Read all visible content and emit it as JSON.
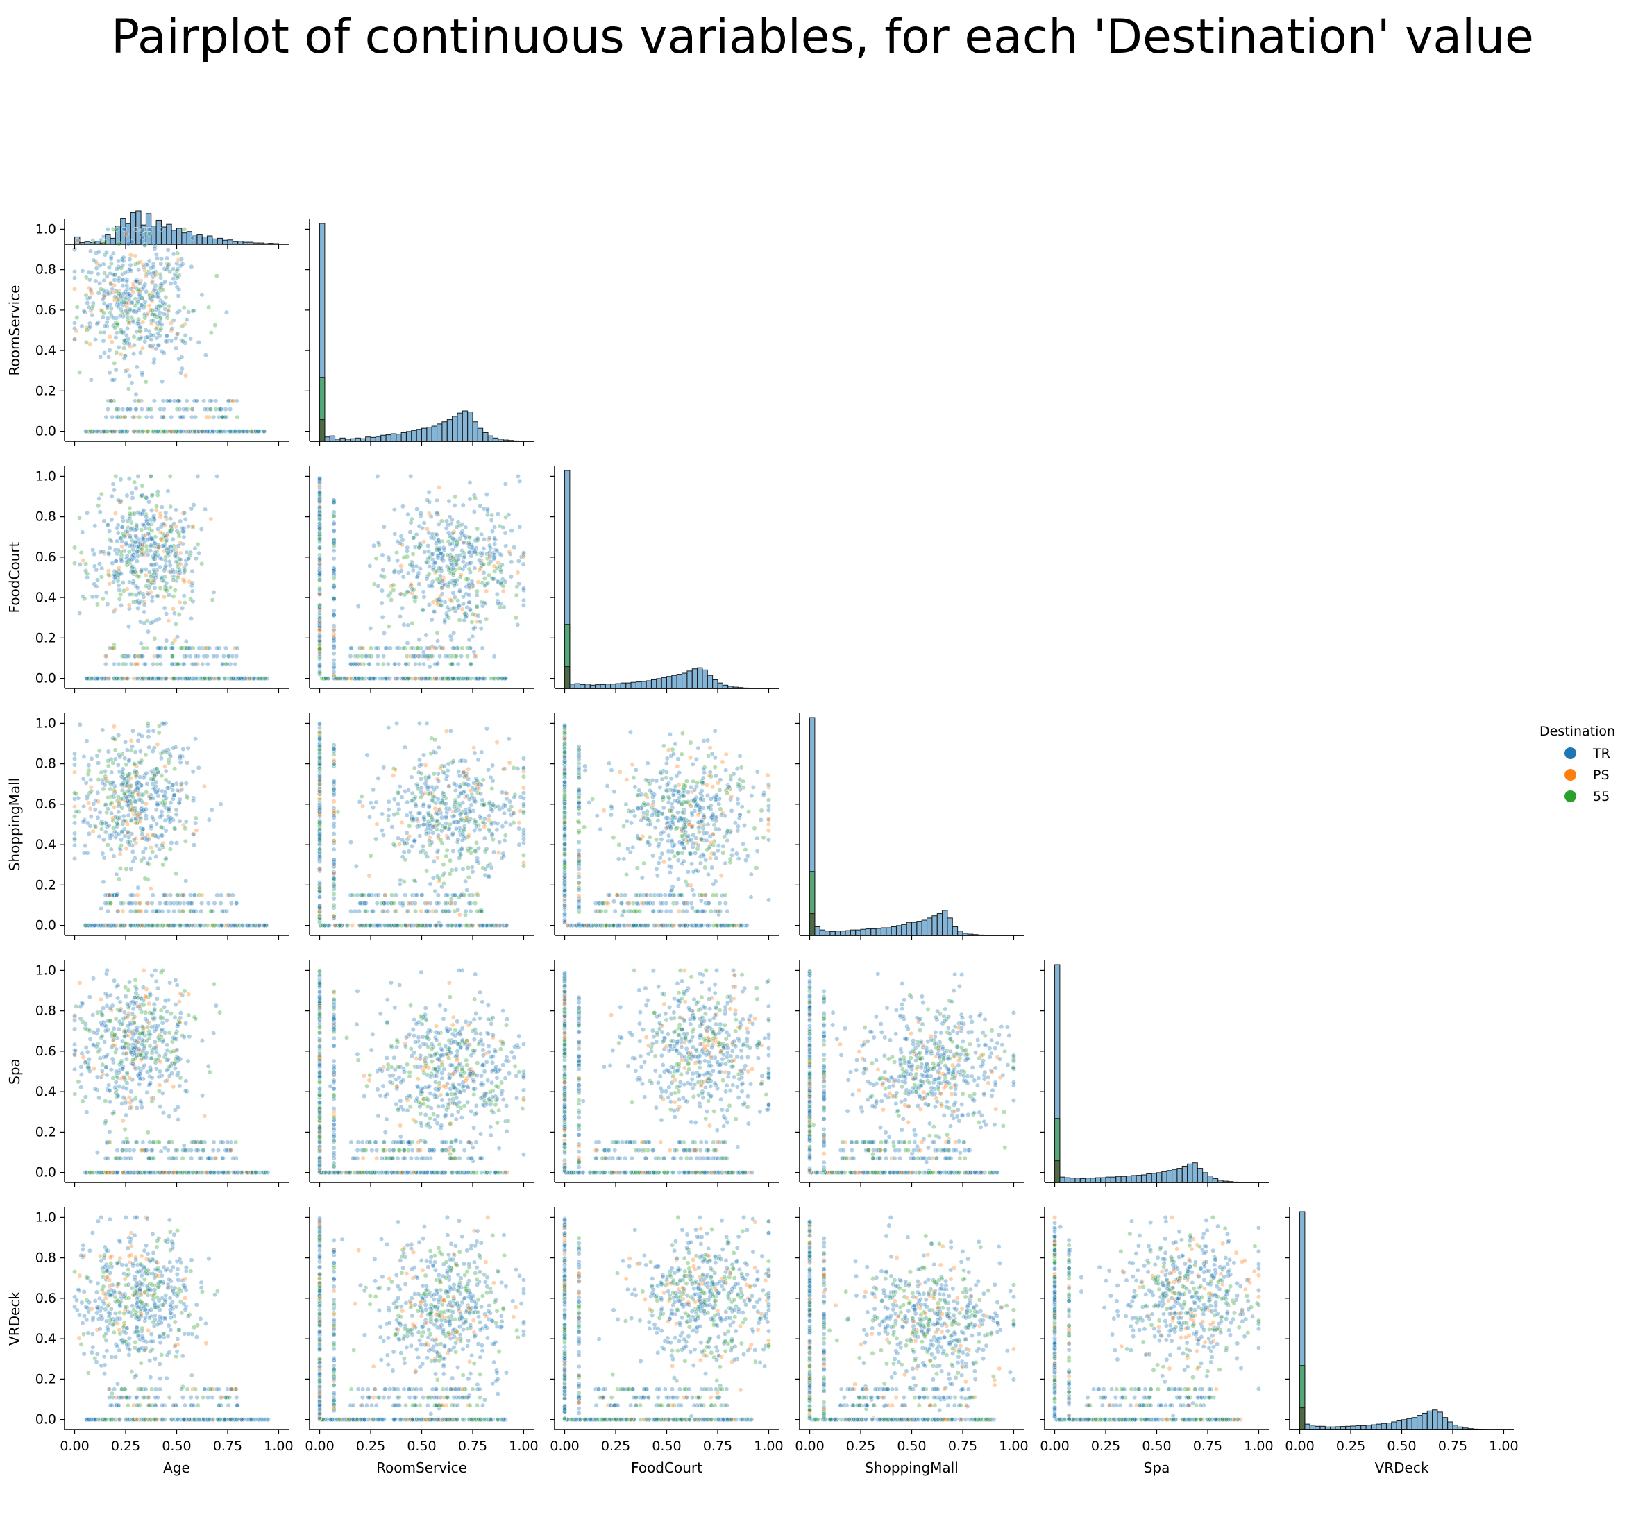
{
  "title": "Pairplot of continuous variables, for each 'Destination' value",
  "legend": {
    "title": "Destination",
    "entries": [
      {
        "label": "TR",
        "color": "#1f77b4"
      },
      {
        "label": "PS",
        "color": "#ff7f0e"
      },
      {
        "label": "55",
        "color": "#2ca02c"
      }
    ]
  },
  "chart_data": {
    "type": "scatter",
    "variant": "pairplot (corner, lower triangle) with histogram diagonal",
    "variables": [
      "Age",
      "RoomService",
      "FoodCourt",
      "ShoppingMall",
      "Spa",
      "VRDeck"
    ],
    "hue": "Destination",
    "hue_levels": [
      "TR",
      "PS",
      "55"
    ],
    "axis_range": [
      0,
      1
    ],
    "ticks": [
      0.0,
      0.25,
      0.5,
      0.75,
      1.0
    ],
    "x_tick_labels": [
      "0.00",
      "0.25",
      "0.50",
      "0.75",
      "1.00"
    ],
    "y_ticks": [
      0.0,
      0.2,
      0.4,
      0.6,
      0.8,
      1.0
    ],
    "y_tick_labels": [
      "0.0",
      "0.2",
      "0.4",
      "0.6",
      "0.8",
      "1.0"
    ],
    "grid": false,
    "legend_position": "right",
    "diagonal_histograms": {
      "bin_width": 0.025,
      "Age": [
        0.22,
        0.05,
        0.08,
        0.05,
        0.09,
        0.04,
        0.3,
        0.18,
        0.55,
        0.78,
        0.62,
        0.95,
        1.0,
        0.58,
        0.92,
        0.55,
        0.72,
        0.52,
        0.6,
        0.42,
        0.48,
        0.34,
        0.38,
        0.28,
        0.3,
        0.22,
        0.25,
        0.16,
        0.18,
        0.12,
        0.13,
        0.08,
        0.09,
        0.06,
        0.06,
        0.04,
        0.04,
        0.02,
        0.03,
        0.02
      ],
      "RoomService": [
        1.0,
        0.02,
        0.025,
        0.01,
        0.015,
        0.01,
        0.012,
        0.015,
        0.012,
        0.02,
        0.018,
        0.022,
        0.028,
        0.03,
        0.035,
        0.033,
        0.04,
        0.045,
        0.05,
        0.055,
        0.06,
        0.065,
        0.07,
        0.08,
        0.09,
        0.1,
        0.115,
        0.13,
        0.14,
        0.135,
        0.09,
        0.06,
        0.04,
        0.025,
        0.015,
        0.01,
        0.006,
        0.004,
        0.002,
        0.001
      ],
      "FoodCourt": [
        1.0,
        0.02,
        0.022,
        0.018,
        0.02,
        0.015,
        0.017,
        0.018,
        0.02,
        0.02,
        0.022,
        0.025,
        0.025,
        0.028,
        0.03,
        0.032,
        0.035,
        0.04,
        0.045,
        0.05,
        0.055,
        0.06,
        0.065,
        0.07,
        0.08,
        0.09,
        0.095,
        0.085,
        0.06,
        0.04,
        0.025,
        0.015,
        0.01,
        0.006,
        0.004,
        0.002,
        0.001,
        0.001,
        0.0,
        0.0
      ],
      "ShoppingMall": [
        1.0,
        0.04,
        0.025,
        0.02,
        0.018,
        0.02,
        0.02,
        0.022,
        0.025,
        0.025,
        0.028,
        0.03,
        0.03,
        0.032,
        0.035,
        0.035,
        0.04,
        0.045,
        0.05,
        0.06,
        0.06,
        0.065,
        0.07,
        0.08,
        0.09,
        0.1,
        0.115,
        0.08,
        0.04,
        0.02,
        0.01,
        0.006,
        0.004,
        0.002,
        0.001,
        0.0,
        0.0,
        0.0,
        0.0,
        0.0
      ],
      "Spa": [
        1.0,
        0.025,
        0.022,
        0.02,
        0.02,
        0.018,
        0.02,
        0.02,
        0.022,
        0.022,
        0.025,
        0.025,
        0.028,
        0.028,
        0.03,
        0.032,
        0.033,
        0.035,
        0.04,
        0.042,
        0.045,
        0.05,
        0.055,
        0.06,
        0.065,
        0.075,
        0.085,
        0.09,
        0.065,
        0.045,
        0.03,
        0.018,
        0.01,
        0.006,
        0.004,
        0.002,
        0.001,
        0.0,
        0.0,
        0.0
      ],
      "VRDeck": [
        1.0,
        0.025,
        0.02,
        0.015,
        0.015,
        0.012,
        0.012,
        0.013,
        0.014,
        0.015,
        0.016,
        0.018,
        0.018,
        0.02,
        0.022,
        0.025,
        0.028,
        0.03,
        0.035,
        0.04,
        0.045,
        0.05,
        0.055,
        0.065,
        0.075,
        0.085,
        0.09,
        0.08,
        0.055,
        0.035,
        0.02,
        0.012,
        0.007,
        0.004,
        0.002,
        0.001,
        0.0,
        0.0,
        0.0,
        0.0
      ],
      "first_bin_share_by_hue": {
        "TR": 0.69,
        "PS": 0.1,
        "55": 0.21
      }
    },
    "scatter_clusters": {
      "description": "approximate point-cloud centers (x, y) read from each off-diagonal panel",
      "RoomService_vs_Age": [
        0.3,
        0.65
      ],
      "FoodCourt_vs_Age": [
        0.35,
        0.62
      ],
      "FoodCourt_vs_RoomService": [
        0.65,
        0.55
      ],
      "ShoppingMall_vs_Age": [
        0.3,
        0.6
      ],
      "ShoppingMall_vs_RoomService": [
        0.65,
        0.55
      ],
      "ShoppingMall_vs_FoodCourt": [
        0.6,
        0.55
      ],
      "Spa_vs_Age": [
        0.3,
        0.62
      ],
      "Spa_vs_RoomService": [
        0.65,
        0.5
      ],
      "Spa_vs_FoodCourt": [
        0.68,
        0.62
      ],
      "Spa_vs_ShoppingMall": [
        0.6,
        0.5
      ],
      "VRDeck_vs_Age": [
        0.3,
        0.6
      ],
      "VRDeck_vs_RoomService": [
        0.62,
        0.55
      ],
      "VRDeck_vs_FoodCourt": [
        0.68,
        0.6
      ],
      "VRDeck_vs_ShoppingMall": [
        0.6,
        0.5
      ],
      "VRDeck_vs_Spa": [
        0.65,
        0.6
      ]
    }
  }
}
